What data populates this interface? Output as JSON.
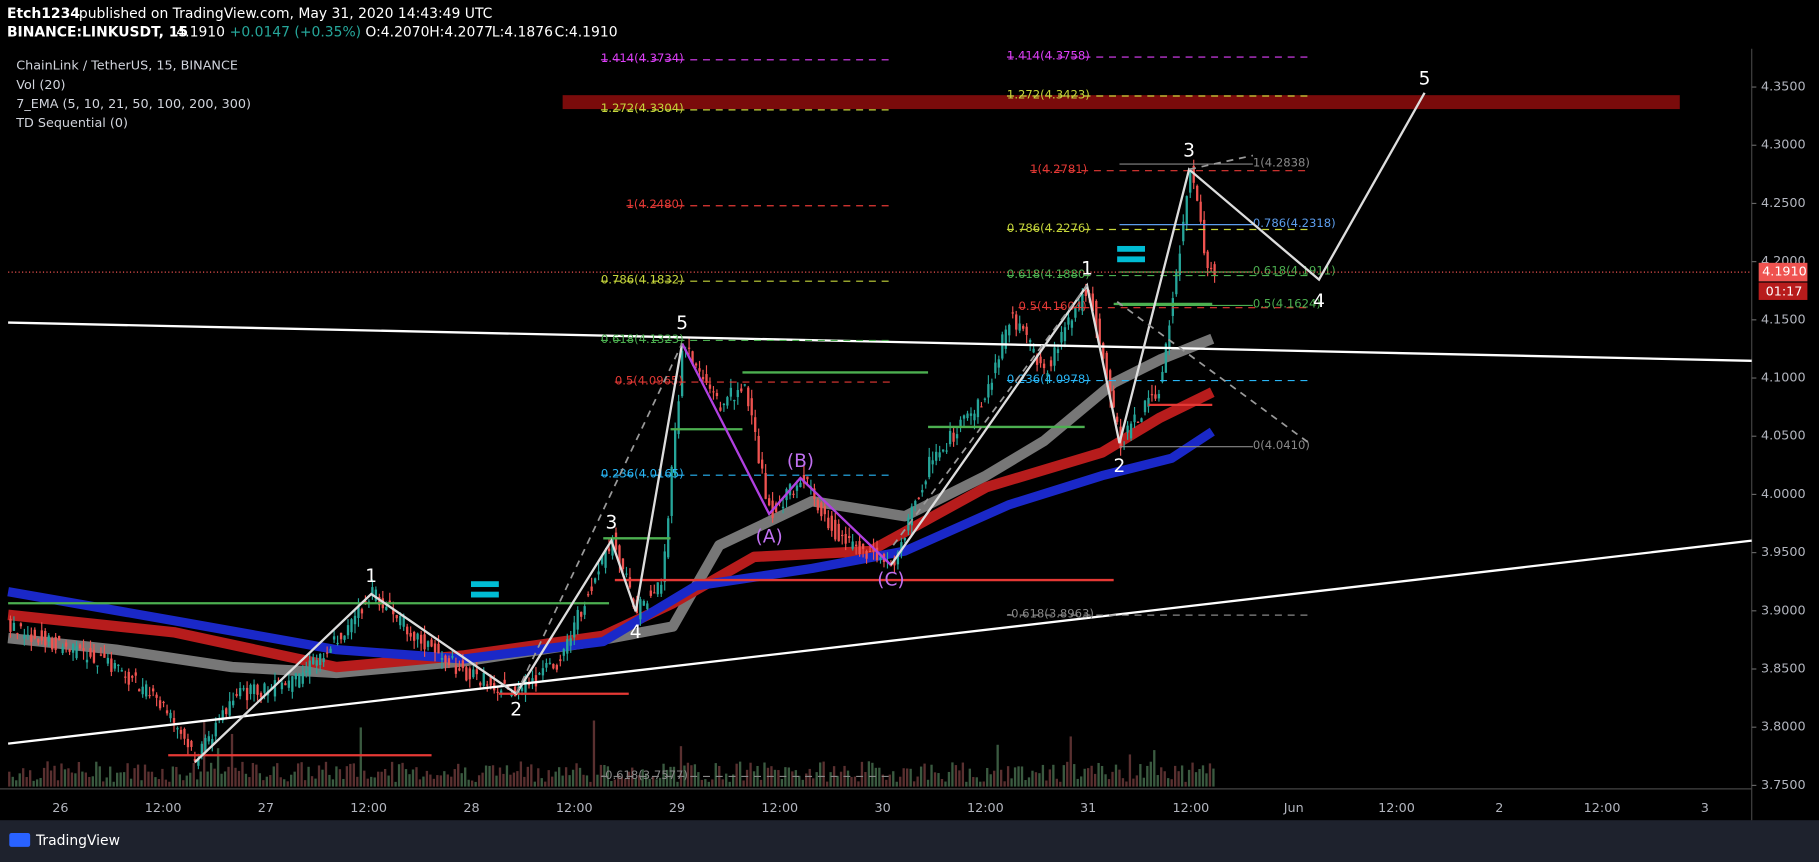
{
  "header": {
    "user": "Etch1234",
    "published": "published on TradingView.com, May 31, 2020 14:43:49 UTC",
    "symbol": "BINANCE:LINKUSDT, 15",
    "last": "4.1910",
    "change": "+0.0147 (+0.35%)",
    "open": "O:4.2070",
    "high": "H:4.2077",
    "low": "L:4.1876",
    "close": "C:4.1910"
  },
  "legend": [
    "ChainLink / TetherUS, 15, BINANCE",
    "Vol (20)",
    "7_EMA (5, 10, 21, 50, 100, 200, 300)",
    "TD Sequential (0)"
  ],
  "chart_data": {
    "type": "candlestick",
    "ylim": [
      3.747,
      4.3829
    ],
    "yticks": [
      {
        "value": 3.75,
        "label": "3.7500"
      },
      {
        "value": 3.8,
        "label": "3.8000"
      },
      {
        "value": 3.85,
        "label": "3.8500"
      },
      {
        "value": 3.9,
        "label": "3.9000"
      },
      {
        "value": 3.95,
        "label": "3.9500"
      },
      {
        "value": 4.0,
        "label": "4.0000"
      },
      {
        "value": 4.05,
        "label": "4.0500"
      },
      {
        "value": 4.1,
        "label": "4.1000"
      },
      {
        "value": 4.15,
        "label": "4.1500"
      },
      {
        "value": 4.2,
        "label": "4.2000"
      },
      {
        "value": 4.25,
        "label": "4.2500"
      },
      {
        "value": 4.3,
        "label": "4.3000"
      },
      {
        "value": 4.35,
        "label": "4.3500"
      }
    ],
    "xticks": [
      "26",
      "12:00",
      "27",
      "12:00",
      "28",
      "12:00",
      "29",
      "12:00",
      "30",
      "12:00",
      "31",
      "12:00",
      "Jun",
      "12:00",
      "2",
      "12:00",
      "3"
    ],
    "last_price": {
      "value": 4.191,
      "label": "4.1910"
    },
    "countdown": "01:17",
    "fib_levels": [
      {
        "value": 4.3734,
        "label": "1.414(4.3734)",
        "color": "#e040fb"
      },
      {
        "value": 4.3304,
        "label": "1.272(4.3304)",
        "color": "#c6d63b"
      },
      {
        "value": 4.248,
        "label": "1(4.2480)",
        "color": "#e53935"
      },
      {
        "value": 4.1832,
        "label": "0.786(4.1832)",
        "color": "#c6d63b"
      },
      {
        "value": 4.1323,
        "label": "0.618(4.1323)",
        "color": "#4caf50"
      },
      {
        "value": 4.0965,
        "label": "0.5(4.0965)",
        "color": "#e53935"
      },
      {
        "value": 4.0165,
        "label": "0.236(4.0165)",
        "color": "#29b6f6"
      },
      {
        "value": 3.7577,
        "label": "-0.618(3.7577)",
        "color": "#888888"
      },
      {
        "value": 4.3758,
        "label": "1.414(4.3758)",
        "color": "#e040fb"
      },
      {
        "value": 4.3423,
        "label": "1.272(4.3423)",
        "color": "#c6d63b"
      },
      {
        "value": 4.2781,
        "label": "1(4.2781)",
        "color": "#e53935"
      },
      {
        "value": 4.2276,
        "label": "0.786(4.2276)",
        "color": "#c6d63b"
      },
      {
        "value": 4.188,
        "label": "0.618(4.1880)",
        "color": "#4caf50"
      },
      {
        "value": 4.1604,
        "label": "0.5(4.1604)",
        "color": "#e53935"
      },
      {
        "value": 4.0978,
        "label": "0.236(4.0978)",
        "color": "#29b6f6"
      },
      {
        "value": 3.8963,
        "label": "-0.618(3.8963)",
        "color": "#888888"
      },
      {
        "value": 4.2838,
        "label": "1(4.2838)",
        "color": "#888888"
      },
      {
        "value": 4.2318,
        "label": "0.786(4.2318)",
        "color": "#5c9ded"
      },
      {
        "value": 4.1911,
        "label": "0.618(4.1911)",
        "color": "#4caf50"
      },
      {
        "value": 4.1624,
        "label": "0.5(4.1624)",
        "color": "#4caf50"
      },
      {
        "value": 4.041,
        "label": "0(4.0410)",
        "color": "#888888"
      }
    ],
    "wave_labels": [
      "1",
      "2",
      "3",
      "4",
      "5",
      "(A)",
      "(B)",
      "(C)",
      "1",
      "2",
      "3",
      "4",
      "5"
    ]
  },
  "footer": {
    "brand": "TradingView"
  }
}
